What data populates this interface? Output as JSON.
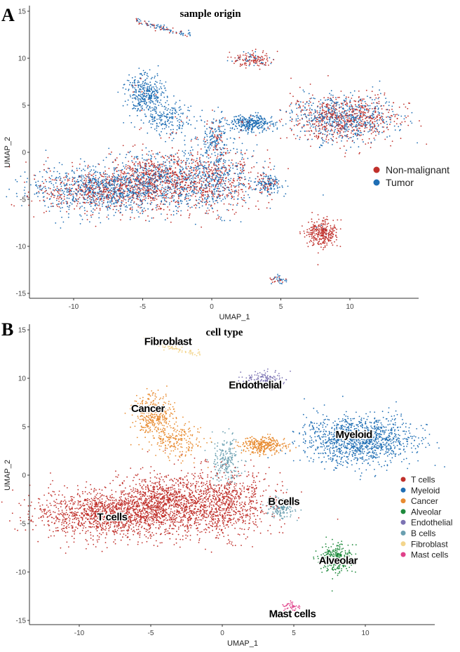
{
  "chart_data": [
    {
      "panel_label": "A",
      "type": "scatter",
      "title": "sample origin",
      "xlabel": "UMAP_1",
      "ylabel": "UMAP_2",
      "xlim": [
        -13,
        15
      ],
      "ylim": [
        -16,
        15.5
      ],
      "xticks": [
        -10,
        -5,
        0,
        5,
        10
      ],
      "yticks": [
        -15,
        -10,
        -5,
        0,
        5,
        10,
        15
      ],
      "grid": false,
      "legend_position": "right",
      "legend": [
        {
          "name": "Non-malignant",
          "color": "#C0302B"
        },
        {
          "name": "Tumor",
          "color": "#1F6EB4"
        }
      ]
    },
    {
      "panel_label": "B",
      "type": "scatter",
      "title": "cell type",
      "xlabel": "UMAP_1",
      "ylabel": "UMAP_2",
      "xlim": [
        -13.5,
        15
      ],
      "ylim": [
        -15.5,
        15.5
      ],
      "xticks": [
        -10,
        -5,
        0,
        5,
        10
      ],
      "yticks": [
        -15,
        -10,
        -5,
        0,
        5,
        10,
        15
      ],
      "grid": false,
      "legend_position": "right",
      "legend": [
        {
          "name": "T cells",
          "color": "#C0302B"
        },
        {
          "name": "Myeloid",
          "color": "#1F6EB4"
        },
        {
          "name": "Cancer",
          "color": "#E88B30"
        },
        {
          "name": "Alveolar",
          "color": "#1E8A3C"
        },
        {
          "name": "Endothelial",
          "color": "#7B72B3"
        },
        {
          "name": "B cells",
          "color": "#6A9FB0"
        },
        {
          "name": "Fibroblast",
          "color": "#F3D58C"
        },
        {
          "name": "Mast cells",
          "color": "#E0418A"
        }
      ],
      "cluster_labels": [
        {
          "text": "Fibroblast",
          "x": -3.8,
          "y": 13.8
        },
        {
          "text": "Endothelial",
          "x": 2.3,
          "y": 9.3
        },
        {
          "text": "Cancer",
          "x": -5.2,
          "y": 6.9
        },
        {
          "text": "Myeloid",
          "x": 9.2,
          "y": 4.2
        },
        {
          "text": "T cells",
          "x": -7.7,
          "y": -4.3
        },
        {
          "text": "B cells",
          "x": 4.3,
          "y": -2.7
        },
        {
          "text": "Alveolar",
          "x": 8.1,
          "y": -8.8
        },
        {
          "text": "Mast cells",
          "x": 4.9,
          "y": -14.3
        }
      ],
      "clusters": [
        {
          "type": "T cells",
          "cx": -8,
          "cy": -4,
          "sx": 2.6,
          "sy": 1.2,
          "n": 1400,
          "nonmalignant_frac": 0.35
        },
        {
          "type": "T cells",
          "cx": -4.5,
          "cy": -2.8,
          "sx": 1.4,
          "sy": 1.5,
          "n": 600,
          "nonmalignant_frac": 0.6
        },
        {
          "type": "T cells",
          "cx": -0.5,
          "cy": -3,
          "sx": 2.0,
          "sy": 1.7,
          "n": 1100,
          "nonmalignant_frac": 0.5
        },
        {
          "type": "Myeloid",
          "cx": 9.5,
          "cy": 3.6,
          "sx": 1.9,
          "sy": 1.2,
          "n": 1200,
          "nonmalignant_frac": 0.5
        },
        {
          "type": "Cancer",
          "cx": -4.8,
          "cy": 6.2,
          "sx": 0.7,
          "sy": 1.1,
          "n": 350,
          "nonmalignant_frac": 0.02
        },
        {
          "type": "Cancer",
          "cx": -3.3,
          "cy": 3.5,
          "sx": 0.9,
          "sy": 0.9,
          "n": 200,
          "nonmalignant_frac": 0.02
        },
        {
          "type": "Cancer",
          "cx": 2.9,
          "cy": 3.1,
          "sx": 0.8,
          "sy": 0.45,
          "n": 300,
          "nonmalignant_frac": 0.02
        },
        {
          "type": "Alveolar",
          "cx": 8.0,
          "cy": -8.6,
          "sx": 0.55,
          "sy": 0.7,
          "n": 300,
          "nonmalignant_frac": 0.98
        },
        {
          "type": "Endothelial",
          "cx": 3.0,
          "cy": 9.9,
          "sx": 0.7,
          "sy": 0.4,
          "n": 150,
          "nonmalignant_frac": 0.75
        },
        {
          "type": "B cells",
          "cx": 0.3,
          "cy": 1.5,
          "sx": 0.5,
          "sy": 1.2,
          "n": 200,
          "nonmalignant_frac": 0.3
        },
        {
          "type": "B cells",
          "cx": 4.1,
          "cy": -3.4,
          "sx": 0.5,
          "sy": 0.5,
          "n": 150,
          "nonmalignant_frac": 0.3
        },
        {
          "type": "Fibroblast",
          "cx": -2.6,
          "cy": 13.4,
          "sx": 1.2,
          "sy": 0.3,
          "n": 100,
          "nonmalignant_frac": 0.3
        },
        {
          "type": "Mast cells",
          "cx": 4.9,
          "cy": -13.6,
          "sx": 0.3,
          "sy": 0.3,
          "n": 40,
          "nonmalignant_frac": 0.5
        }
      ]
    }
  ]
}
